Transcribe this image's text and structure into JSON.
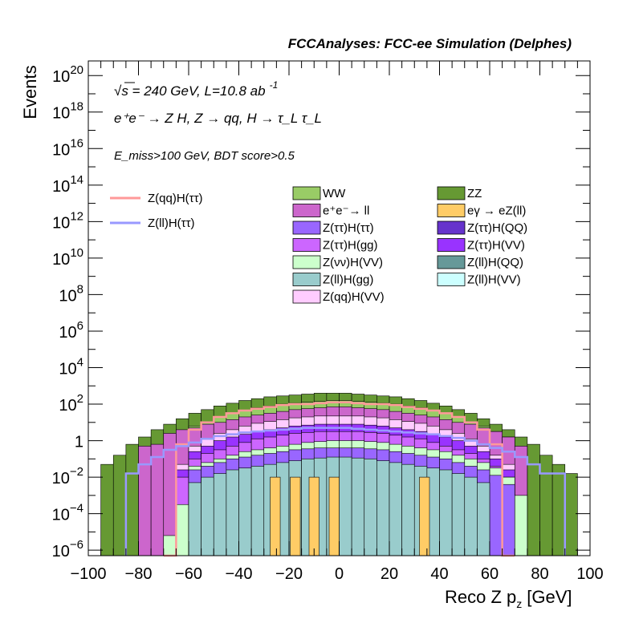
{
  "chart_data": {
    "type": "bar",
    "title": "FCCAnalyses: FCC-ee Simulation (Delphes)",
    "xlabel": "Reco Z p",
    "xlabel_sub": "z",
    "xlabel_unit": "[GeV]",
    "ylabel": "Events",
    "xlim": [
      -100,
      100
    ],
    "ylim_log10": [
      -6.3,
      20.8
    ],
    "log_y": true,
    "grid": false,
    "x_ticks": [
      "−100",
      "−80",
      "−60",
      "−40",
      "−20",
      "0",
      "20",
      "40",
      "60",
      "80",
      "100"
    ],
    "y_tick_exponents": [
      "−6",
      "−4",
      "−2",
      "",
      "2",
      "4",
      "6",
      "8",
      "10",
      "12",
      "14",
      "16",
      "18",
      "20"
    ],
    "y_tick_one": "1",
    "annotations": {
      "line1": "√s = 240 GeV, L=10.8 ab",
      "line1_sup": "-1",
      "line2": "e⁺e⁻ → Z H, Z → qq, H → τ_L τ_L",
      "line3": "E_miss>100 GeV, BDT score>0.5"
    },
    "legend_signal": [
      {
        "name": "Z(qq)H(ττ)",
        "color": "#ff9999"
      },
      {
        "name": "Z(ll)H(ττ)",
        "color": "#9999ff"
      }
    ],
    "legend_bkg": [
      {
        "name": "WW",
        "color": "#99cc66"
      },
      {
        "name": "ZZ",
        "color": "#669933"
      },
      {
        "name": "e⁺e⁻→ ll",
        "color": "#cc66cc"
      },
      {
        "name": "eγ → eZ(ll)",
        "color": "#ffcc66"
      },
      {
        "name": "Z(ττ)H(ττ)",
        "color": "#9966ff"
      },
      {
        "name": "Z(ττ)H(QQ)",
        "color": "#6633cc"
      },
      {
        "name": "Z(ττ)H(gg)",
        "color": "#cc66ff"
      },
      {
        "name": "Z(ττ)H(VV)",
        "color": "#9933ff"
      },
      {
        "name": "Z(νν)H(VV)",
        "color": "#ccffcc"
      },
      {
        "name": "Z(ll)H(QQ)",
        "color": "#669999"
      },
      {
        "name": "Z(ll)H(gg)",
        "color": "#99cccc"
      },
      {
        "name": "Z(ll)H(VV)",
        "color": "#ccffff"
      },
      {
        "name": "Z(qq)H(VV)",
        "color": "#ffccff"
      }
    ],
    "stack_edges_gev": [
      -95,
      -90,
      -85,
      -80,
      -75,
      -70,
      -65,
      -60,
      -55,
      -50,
      -45,
      -40,
      -35,
      -30,
      -25,
      -20,
      -15,
      -10,
      -5,
      0,
      5,
      10,
      15,
      20,
      25,
      30,
      35,
      40,
      45,
      50,
      55,
      60,
      65,
      70,
      75,
      80,
      85,
      90,
      95
    ],
    "stack_series_log10": [
      {
        "name": "Z(ll)H(gg)",
        "color": "#99cccc",
        "values": [
          -7,
          -7,
          -7,
          -7,
          -7,
          -7,
          -7,
          -2.3,
          -2.0,
          -1.8,
          -1.6,
          -1.5,
          -1.4,
          -1.3,
          -1.2,
          -1.1,
          -1.0,
          -0.95,
          -0.9,
          -0.9,
          -0.95,
          -1.0,
          -1.1,
          -1.2,
          -1.3,
          -1.4,
          -1.5,
          -1.6,
          -1.8,
          -2.0,
          -2.3,
          -7,
          -7,
          -7,
          -7,
          -7,
          -7,
          -7
        ]
      },
      {
        "name": "Z(ττ)H(ττ)",
        "color": "#9966ff",
        "values": [
          -7,
          -7,
          -7,
          -7,
          -7,
          -7,
          -7,
          -1.6,
          -1.4,
          -1.2,
          -1.0,
          -0.9,
          -0.8,
          -0.7,
          -0.6,
          -0.5,
          -0.45,
          -0.4,
          -0.4,
          -0.4,
          -0.4,
          -0.45,
          -0.5,
          -0.6,
          -0.7,
          -0.8,
          -0.9,
          -1.0,
          -1.2,
          -1.4,
          -1.6,
          -1.9,
          -2.4,
          -7,
          -7,
          -7,
          -7,
          -7
        ]
      },
      {
        "name": "Z(νν)H(VV)",
        "color": "#ccffcc",
        "values": [
          -7,
          -7,
          -7,
          -7,
          -7,
          -5.2,
          -3.5,
          -1.4,
          -1.2,
          -1.0,
          -0.8,
          -0.6,
          -0.5,
          -0.4,
          -0.3,
          -0.2,
          -0.1,
          -0.05,
          0.0,
          0.0,
          0.0,
          -0.05,
          -0.1,
          -0.2,
          -0.3,
          -0.4,
          -0.5,
          -0.6,
          -0.8,
          -1.0,
          -1.2,
          -1.5,
          -2.0,
          -3.0,
          -7,
          -7,
          -7,
          -7
        ]
      },
      {
        "name": "Z(ττ)H(gg)",
        "color": "#cc66ff",
        "values": [
          -7,
          -7,
          -7,
          -7,
          -7,
          -7,
          -2.0,
          -1.0,
          -0.7,
          -0.5,
          -0.3,
          -0.1,
          0.1,
          0.2,
          0.3,
          0.4,
          0.45,
          0.5,
          0.5,
          0.5,
          0.5,
          0.45,
          0.4,
          0.3,
          0.2,
          0.1,
          -0.1,
          -0.3,
          -0.5,
          -0.7,
          -1.0,
          -1.4,
          -2.0,
          -7,
          -7,
          -7,
          -7,
          -7
        ]
      },
      {
        "name": "Z(ττ)H(VV)",
        "color": "#9933ff",
        "values": [
          -7,
          -7,
          -7,
          -7,
          -7,
          -7,
          -1.6,
          -0.6,
          -0.3,
          0.0,
          0.2,
          0.35,
          0.5,
          0.6,
          0.7,
          0.8,
          0.85,
          0.9,
          0.9,
          0.9,
          0.9,
          0.85,
          0.8,
          0.7,
          0.6,
          0.5,
          0.35,
          0.2,
          0.0,
          -0.3,
          -0.6,
          -1.0,
          -1.6,
          -7,
          -7,
          -7,
          -7,
          -7
        ]
      },
      {
        "name": "Z(qq)H(VV)",
        "color": "#ffccff",
        "values": [
          -7,
          -7,
          -7,
          -7,
          -7,
          -7,
          -1.3,
          -0.3,
          0.1,
          0.4,
          0.6,
          0.8,
          0.95,
          1.05,
          1.15,
          1.25,
          1.3,
          1.35,
          1.35,
          1.35,
          1.35,
          1.3,
          1.25,
          1.15,
          1.05,
          0.95,
          0.8,
          0.6,
          0.4,
          0.1,
          -0.3,
          -0.8,
          -1.3,
          -7,
          -7,
          -7,
          -7,
          -7
        ]
      },
      {
        "name": "e⁺e⁻→ ll",
        "color": "#cc66cc",
        "values": [
          -7,
          -7,
          -7,
          -0.3,
          -0.2,
          0.4,
          0.6,
          0.7,
          0.9,
          1.0,
          1.15,
          1.3,
          1.4,
          1.5,
          1.6,
          1.7,
          1.75,
          1.8,
          1.85,
          1.85,
          1.8,
          1.75,
          1.7,
          1.6,
          1.5,
          1.4,
          1.3,
          1.15,
          1.0,
          0.9,
          0.7,
          0.5,
          0.2,
          -0.3,
          -7,
          -7,
          -7,
          -7
        ]
      },
      {
        "name": "WW",
        "color": "#99cc66",
        "values": [
          -7,
          -7,
          -7,
          -7,
          -7,
          -7,
          0.5,
          0.8,
          1.0,
          1.3,
          1.5,
          1.65,
          1.8,
          1.9,
          2.0,
          2.05,
          2.1,
          2.15,
          2.2,
          2.2,
          2.15,
          2.1,
          2.05,
          2.0,
          1.9,
          1.8,
          1.65,
          1.5,
          1.3,
          1.0,
          0.8,
          0.5,
          0.2,
          -7,
          -7,
          -7,
          -7,
          -7
        ]
      },
      {
        "name": "ZZ",
        "color": "#669933",
        "values": [
          -1.3,
          -0.8,
          -0.2,
          0.2,
          0.6,
          0.9,
          1.2,
          1.5,
          1.7,
          1.9,
          2.05,
          2.2,
          2.3,
          2.4,
          2.45,
          2.5,
          2.55,
          2.6,
          2.6,
          2.6,
          2.55,
          2.5,
          2.45,
          2.4,
          2.3,
          2.2,
          2.05,
          1.9,
          1.7,
          1.5,
          1.2,
          0.9,
          0.6,
          0.2,
          -0.2,
          -0.8,
          -1.3,
          -1.8
        ]
      }
    ],
    "bkg_egamma_bars": [
      {
        "x0": -27.5,
        "x1": -23.5,
        "log10": -2.0
      },
      {
        "x0": -19.5,
        "x1": -15.5,
        "log10": -2.0
      },
      {
        "x0": -12,
        "x1": -8,
        "log10": -2.0
      },
      {
        "x0": -4,
        "x1": 0,
        "log10": -2.0
      },
      {
        "x0": 32,
        "x1": 36,
        "log10": -2.0
      }
    ],
    "signal_lines_log10": [
      {
        "name": "Z(qq)H(ττ)",
        "color": "#ff9999",
        "edges": [
          -70,
          -65,
          -60,
          -55,
          -50,
          -45,
          -40,
          -35,
          -30,
          -25,
          -20,
          -15,
          -10,
          -5,
          0,
          5,
          10,
          15,
          20,
          25,
          30,
          35,
          40,
          45,
          50,
          55,
          60,
          65,
          70
        ],
        "values": [
          -6.3,
          -0.2,
          0.6,
          1.0,
          1.3,
          1.5,
          1.65,
          1.75,
          1.85,
          1.95,
          2.0,
          2.0,
          2.05,
          2.1,
          2.1,
          2.05,
          2.0,
          2.0,
          1.95,
          1.85,
          1.75,
          1.65,
          1.5,
          1.3,
          1.0,
          0.6,
          -0.2,
          -6.3
        ]
      },
      {
        "name": "Z(ll)H(ττ)",
        "color": "#9999ff",
        "edges": [
          -85,
          -80,
          -75,
          -70,
          -65,
          -60,
          -55,
          -50,
          -45,
          -40,
          -35,
          -30,
          -25,
          -20,
          -15,
          -10,
          -5,
          0,
          5,
          10,
          15,
          20,
          25,
          30,
          35,
          40,
          45,
          50,
          55,
          60,
          65,
          70,
          75,
          80,
          85,
          90
        ],
        "values": [
          -1.8,
          -1.3,
          -0.9,
          -0.5,
          -0.3,
          -0.1,
          0.1,
          0.25,
          0.35,
          0.45,
          0.5,
          0.55,
          0.6,
          0.65,
          0.7,
          0.7,
          0.7,
          0.7,
          0.65,
          0.6,
          0.55,
          0.5,
          0.45,
          0.4,
          0.35,
          0.25,
          0.15,
          0.0,
          -0.2,
          -0.4,
          -0.6,
          -0.9,
          -1.3,
          -1.8,
          -1.8
        ]
      }
    ]
  }
}
